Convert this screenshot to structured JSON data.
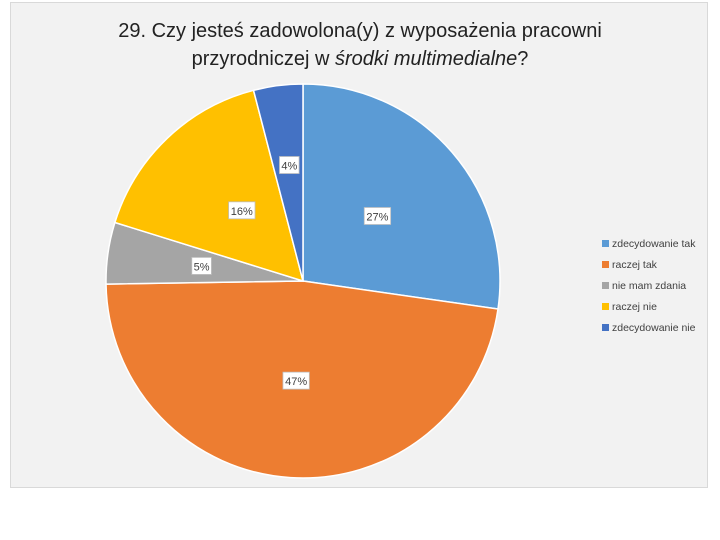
{
  "title": {
    "line1": "29. Czy jesteś zadowolona(y) z wyposażenia pracowni",
    "line2_prefix": "przyrodniczej w ",
    "line2_italic": "środki multimedialne",
    "line2_suffix": "?"
  },
  "chart_data": {
    "type": "pie",
    "title": "29. Czy jesteś zadowolona(y) z wyposażenia pracowni przyrodniczej w środki multimedialne?",
    "legend_position": "right",
    "slices": [
      {
        "label": "zdecydowanie tak",
        "value": 27,
        "display": "27%",
        "color": "#5b9bd5"
      },
      {
        "label": "raczej tak",
        "value": 47,
        "display": "47%",
        "color": "#ed7d31"
      },
      {
        "label": "nie mam zdania",
        "value": 5,
        "display": "5%",
        "color": "#a5a5a5"
      },
      {
        "label": "raczej nie",
        "value": 16,
        "display": "16%",
        "color": "#ffc000"
      },
      {
        "label": "zdecydowanie nie",
        "value": 4,
        "display": "4%",
        "color": "#4472c4"
      }
    ]
  }
}
